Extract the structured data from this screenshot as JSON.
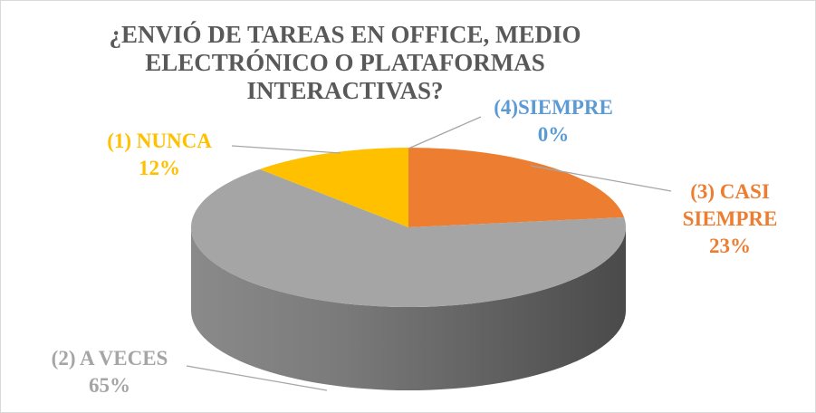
{
  "chart_data": {
    "type": "pie3d",
    "title": "¿ENVIÓ DE TAREAS EN OFFICE, MEDIO ELECTRÓNICO O PLATAFORMAS INTERACTIVAS?",
    "categories": [
      "(3) CASI SIEMPRE",
      "(2) A VECES",
      "(1) NUNCA",
      "(4)SIEMPRE"
    ],
    "values": [
      23,
      65,
      12,
      0
    ],
    "value_labels": [
      "23%",
      "65%",
      "12%",
      "0%"
    ],
    "colors": [
      "#ED7D31",
      "#A5A5A5",
      "#FFC000",
      "#5B9BD5"
    ]
  }
}
